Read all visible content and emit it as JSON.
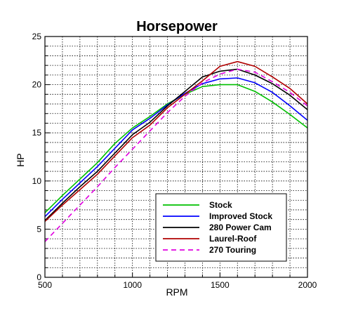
{
  "chart_data": {
    "type": "line",
    "title": "Horsepower",
    "xlabel": "RPM",
    "ylabel": "HP",
    "xlim": [
      500,
      2000
    ],
    "ylim": [
      0,
      25
    ],
    "xticks": [
      500,
      1000,
      1500,
      2000
    ],
    "yticks": [
      0,
      5,
      10,
      15,
      20,
      25
    ],
    "grid": true,
    "legend_position": "bottom-right",
    "series": [
      {
        "name": "Stock",
        "color": "#00c000",
        "dashed": false,
        "x": [
          500,
          600,
          700,
          800,
          900,
          1000,
          1100,
          1200,
          1300,
          1400,
          1500,
          1600,
          1700,
          1800,
          1900,
          2000
        ],
        "y": [
          6.7,
          8.5,
          10.2,
          11.9,
          13.9,
          15.5,
          16.7,
          18.0,
          19.0,
          19.8,
          20.0,
          20.0,
          19.3,
          18.2,
          16.9,
          15.5
        ]
      },
      {
        "name": "Improved Stock",
        "color": "#0000ff",
        "dashed": false,
        "x": [
          500,
          600,
          700,
          800,
          900,
          1000,
          1100,
          1200,
          1300,
          1400,
          1500,
          1600,
          1700,
          1800,
          1900,
          2000
        ],
        "y": [
          6.3,
          8.1,
          9.8,
          11.5,
          13.4,
          15.3,
          16.5,
          17.9,
          19.1,
          20.1,
          20.6,
          20.7,
          20.2,
          19.2,
          17.8,
          16.3
        ]
      },
      {
        "name": "280 Power Cam",
        "color": "#000000",
        "dashed": false,
        "x": [
          500,
          600,
          700,
          800,
          900,
          1000,
          1100,
          1200,
          1300,
          1400,
          1500,
          1600,
          1700,
          1800,
          1900,
          2000
        ],
        "y": [
          5.9,
          7.7,
          9.4,
          11.0,
          12.9,
          14.8,
          16.1,
          17.8,
          19.3,
          20.8,
          21.4,
          21.6,
          21.0,
          20.1,
          18.9,
          17.4
        ]
      },
      {
        "name": "Laurel-Roof",
        "color": "#b00000",
        "dashed": false,
        "x": [
          500,
          600,
          700,
          800,
          900,
          1000,
          1100,
          1200,
          1300,
          1400,
          1500,
          1600,
          1700,
          1800,
          1900,
          2000
        ],
        "y": [
          5.8,
          7.5,
          9.1,
          10.7,
          12.6,
          14.5,
          15.8,
          17.6,
          19.0,
          20.4,
          21.9,
          22.4,
          21.9,
          20.8,
          19.6,
          18.0
        ]
      },
      {
        "name": "270 Touring",
        "color": "#e000e0",
        "dashed": true,
        "x": [
          500,
          600,
          700,
          800,
          900,
          1000,
          1100,
          1200,
          1300,
          1400,
          1500,
          1600,
          1700,
          1800,
          1900,
          2000
        ],
        "y": [
          3.7,
          5.6,
          7.5,
          9.4,
          11.4,
          13.3,
          15.2,
          17.1,
          18.8,
          20.2,
          21.1,
          21.6,
          21.3,
          20.3,
          19.2,
          17.8
        ]
      }
    ]
  }
}
